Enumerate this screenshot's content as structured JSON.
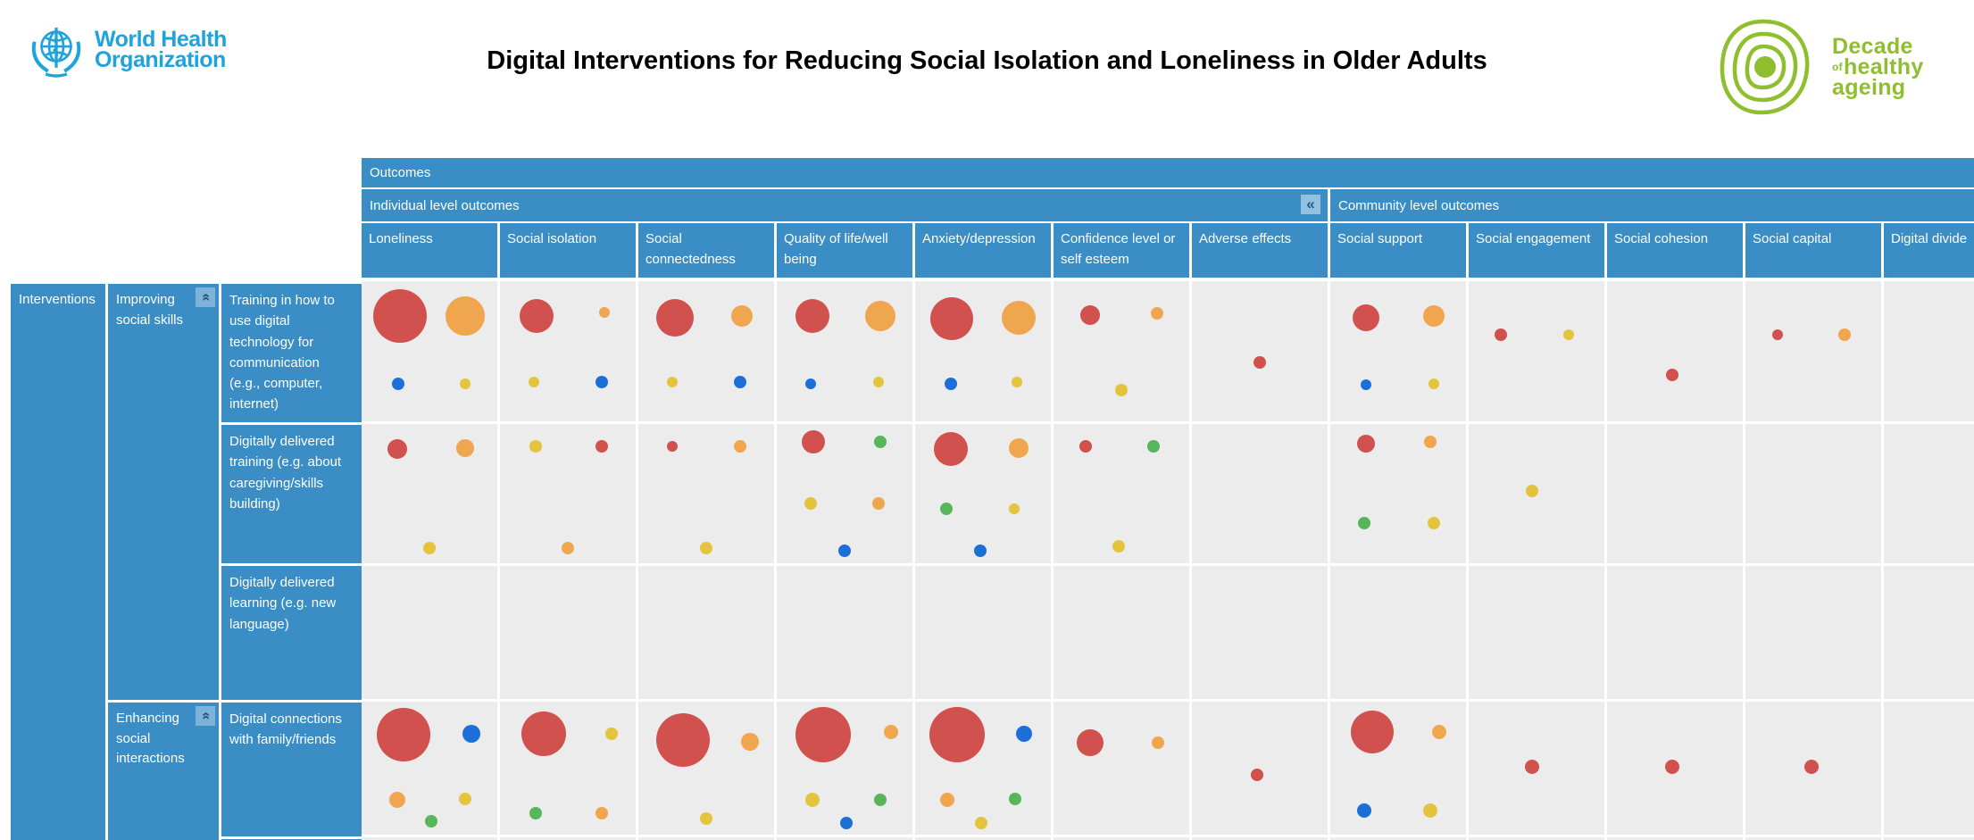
{
  "branding": {
    "who": {
      "line1": "World Health",
      "line2": "Organization"
    },
    "title": "Digital Interventions for Reducing Social Isolation and Loneliness in Older Adults",
    "decade": {
      "word1": "Decade",
      "of": "of",
      "word2": "healthy",
      "word3": "ageing"
    }
  },
  "icons": {
    "collapse_left": "«",
    "collapse_up": "«"
  },
  "table": {
    "outcomes_label": "Outcomes",
    "individual_label": "Individual level outcomes",
    "community_label": "Community level outcomes",
    "interventions_label": "Interventions",
    "categories": [
      "Improving social skills",
      "Enhancing social interactions"
    ]
  },
  "colors": {
    "header_blue": "#3A8DC5",
    "cell_gray": "#ECECEC",
    "who_blue": "#1EA3DC",
    "decade_green": "#8FBE2E",
    "collapse_button_bg": "#93C0DF",
    "collapse_glyph": "#1D5E90"
  },
  "chart_data": {
    "type": "heatmap",
    "title": "Digital Interventions for Reducing Social Isolation and Loneliness in Older Adults",
    "row_axis_label": "Interventions",
    "column_axis_label": "Outcomes",
    "column_groups": [
      {
        "label": "Individual level outcomes",
        "columns": [
          "Loneliness",
          "Social isolation",
          "Social connectedness",
          "Quality of life/well being",
          "Anxiety/depression",
          "Confidence level or self esteem",
          "Adverse effects"
        ]
      },
      {
        "label": "Community level outcomes",
        "columns": [
          "Social support",
          "Social engagement",
          "Social cohesion",
          "Social capital",
          "Digital divide"
        ]
      }
    ],
    "columns": [
      "Loneliness",
      "Social isolation",
      "Social connectedness",
      "Quality of life/well being",
      "Anxiety/depression",
      "Confidence level or self esteem",
      "Adverse effects",
      "Social support",
      "Social engagement",
      "Social cohesion",
      "Social capital",
      "Digital divide"
    ],
    "row_groups": [
      {
        "label": "Improving social skills",
        "rows": [
          "Training in how to use digital technology for communication (e.g., computer, internet)",
          "Digitally delivered training (e.g. about caregiving/skills building)",
          "Digitally delivered learning (e.g. new language)"
        ]
      },
      {
        "label": "Enhancing social interactions",
        "rows": [
          "Digital connections with family/friends"
        ]
      }
    ],
    "rows": [
      "Training in how to use digital technology for communication (e.g., computer, internet)",
      "Digitally delivered training (e.g. about caregiving/skills building)",
      "Digitally delivered learning (e.g. new language)",
      "Digital connections with family/friends"
    ],
    "bubble_colors": {
      "red": "#D0514E",
      "orange": "#F0A64F",
      "yellow": "#E4C43D",
      "blue": "#1D6FD8",
      "green": "#57B65A"
    },
    "cells": {
      "0-0": [
        [
          "red",
          30,
          28,
          25
        ],
        [
          "orange",
          22,
          76,
          25
        ],
        [
          "blue",
          7,
          27,
          73
        ],
        [
          "yellow",
          6,
          76,
          73
        ]
      ],
      "0-1": [
        [
          "red",
          19,
          27,
          25
        ],
        [
          "orange",
          6,
          77,
          22
        ],
        [
          "yellow",
          6,
          25,
          72
        ],
        [
          "blue",
          7,
          75,
          72
        ]
      ],
      "0-2": [
        [
          "red",
          21,
          27,
          26
        ],
        [
          "orange",
          12,
          76,
          25
        ],
        [
          "yellow",
          6,
          25,
          72
        ],
        [
          "blue",
          7,
          75,
          72
        ]
      ],
      "0-3": [
        [
          "red",
          19,
          26,
          25
        ],
        [
          "orange",
          17,
          76,
          25
        ],
        [
          "blue",
          6,
          25,
          73
        ],
        [
          "yellow",
          6,
          75,
          72
        ]
      ],
      "0-4": [
        [
          "red",
          24,
          27,
          27
        ],
        [
          "orange",
          19,
          76,
          26
        ],
        [
          "blue",
          7,
          26,
          73
        ],
        [
          "yellow",
          6,
          75,
          72
        ]
      ],
      "0-5": [
        [
          "red",
          11,
          27,
          24
        ],
        [
          "orange",
          7,
          76,
          23
        ],
        [
          "yellow",
          7,
          50,
          78
        ]
      ],
      "0-6": [
        [
          "red",
          7,
          50,
          58
        ]
      ],
      "0-7": [
        [
          "red",
          15,
          26,
          26
        ],
        [
          "orange",
          12,
          76,
          25
        ],
        [
          "blue",
          6,
          26,
          74
        ],
        [
          "yellow",
          6,
          76,
          73
        ]
      ],
      "0-8": [
        [
          "red",
          7,
          24,
          38
        ],
        [
          "yellow",
          6,
          74,
          38
        ]
      ],
      "0-9": [
        [
          "red",
          7,
          48,
          67
        ]
      ],
      "0-10": [
        [
          "red",
          6,
          24,
          38
        ],
        [
          "orange",
          7,
          73,
          38
        ]
      ],
      "1-0": [
        [
          "red",
          11,
          26,
          18
        ],
        [
          "orange",
          10,
          76,
          17
        ],
        [
          "yellow",
          7,
          50,
          89
        ]
      ],
      "1-1": [
        [
          "yellow",
          7,
          26,
          16
        ],
        [
          "red",
          7,
          75,
          16
        ],
        [
          "orange",
          7,
          50,
          89
        ]
      ],
      "1-2": [
        [
          "red",
          6,
          25,
          16
        ],
        [
          "orange",
          7,
          75,
          16
        ],
        [
          "yellow",
          7,
          50,
          89
        ]
      ],
      "1-3": [
        [
          "red",
          13,
          27,
          13
        ],
        [
          "green",
          7,
          76,
          13
        ],
        [
          "yellow",
          7,
          25,
          57
        ],
        [
          "orange",
          7,
          75,
          57
        ],
        [
          "blue",
          7,
          50,
          91
        ]
      ],
      "1-4": [
        [
          "red",
          19,
          26,
          18
        ],
        [
          "orange",
          11,
          76,
          17
        ],
        [
          "green",
          7,
          23,
          61
        ],
        [
          "yellow",
          6,
          73,
          61
        ],
        [
          "blue",
          7,
          48,
          91
        ]
      ],
      "1-5": [
        [
          "red",
          7,
          24,
          16
        ],
        [
          "green",
          7,
          74,
          16
        ],
        [
          "yellow",
          7,
          48,
          88
        ]
      ],
      "1-7": [
        [
          "red",
          10,
          26,
          14
        ],
        [
          "orange",
          7,
          74,
          13
        ],
        [
          "green",
          7,
          25,
          71
        ],
        [
          "yellow",
          7,
          76,
          71
        ]
      ],
      "1-8": [
        [
          "yellow",
          7,
          47,
          48
        ]
      ],
      "3-0": [
        [
          "red",
          30,
          31,
          25
        ],
        [
          "blue",
          10,
          81,
          24
        ],
        [
          "orange",
          9,
          26,
          74
        ],
        [
          "yellow",
          7,
          76,
          73
        ],
        [
          "green",
          7,
          51,
          90
        ]
      ],
      "3-1": [
        [
          "red",
          25,
          32,
          24
        ],
        [
          "yellow",
          7,
          82,
          24
        ],
        [
          "green",
          7,
          26,
          84
        ],
        [
          "orange",
          7,
          75,
          84
        ]
      ],
      "3-2": [
        [
          "red",
          30,
          33,
          29
        ],
        [
          "orange",
          10,
          82,
          30
        ],
        [
          "yellow",
          7,
          50,
          88
        ]
      ],
      "3-3": [
        [
          "red",
          31,
          34,
          25
        ],
        [
          "orange",
          8,
          84,
          23
        ],
        [
          "yellow",
          8,
          26,
          74
        ],
        [
          "green",
          7,
          76,
          74
        ],
        [
          "blue",
          7,
          51,
          91
        ]
      ],
      "3-4": [
        [
          "red",
          31,
          31,
          25
        ],
        [
          "blue",
          9,
          80,
          24
        ],
        [
          "orange",
          8,
          24,
          74
        ],
        [
          "green",
          7,
          74,
          73
        ],
        [
          "yellow",
          7,
          49,
          91
        ]
      ],
      "3-5": [
        [
          "red",
          15,
          27,
          31
        ],
        [
          "orange",
          7,
          77,
          31
        ]
      ],
      "3-6": [
        [
          "red",
          7,
          48,
          55
        ]
      ],
      "3-7": [
        [
          "red",
          24,
          31,
          23
        ],
        [
          "orange",
          8,
          80,
          23
        ],
        [
          "blue",
          8,
          25,
          82
        ],
        [
          "yellow",
          8,
          74,
          82
        ]
      ],
      "3-8": [
        [
          "red",
          8,
          47,
          49
        ]
      ],
      "3-9": [
        [
          "red",
          8,
          48,
          49
        ]
      ],
      "3-10": [
        [
          "red",
          8,
          49,
          49
        ]
      ]
    }
  }
}
